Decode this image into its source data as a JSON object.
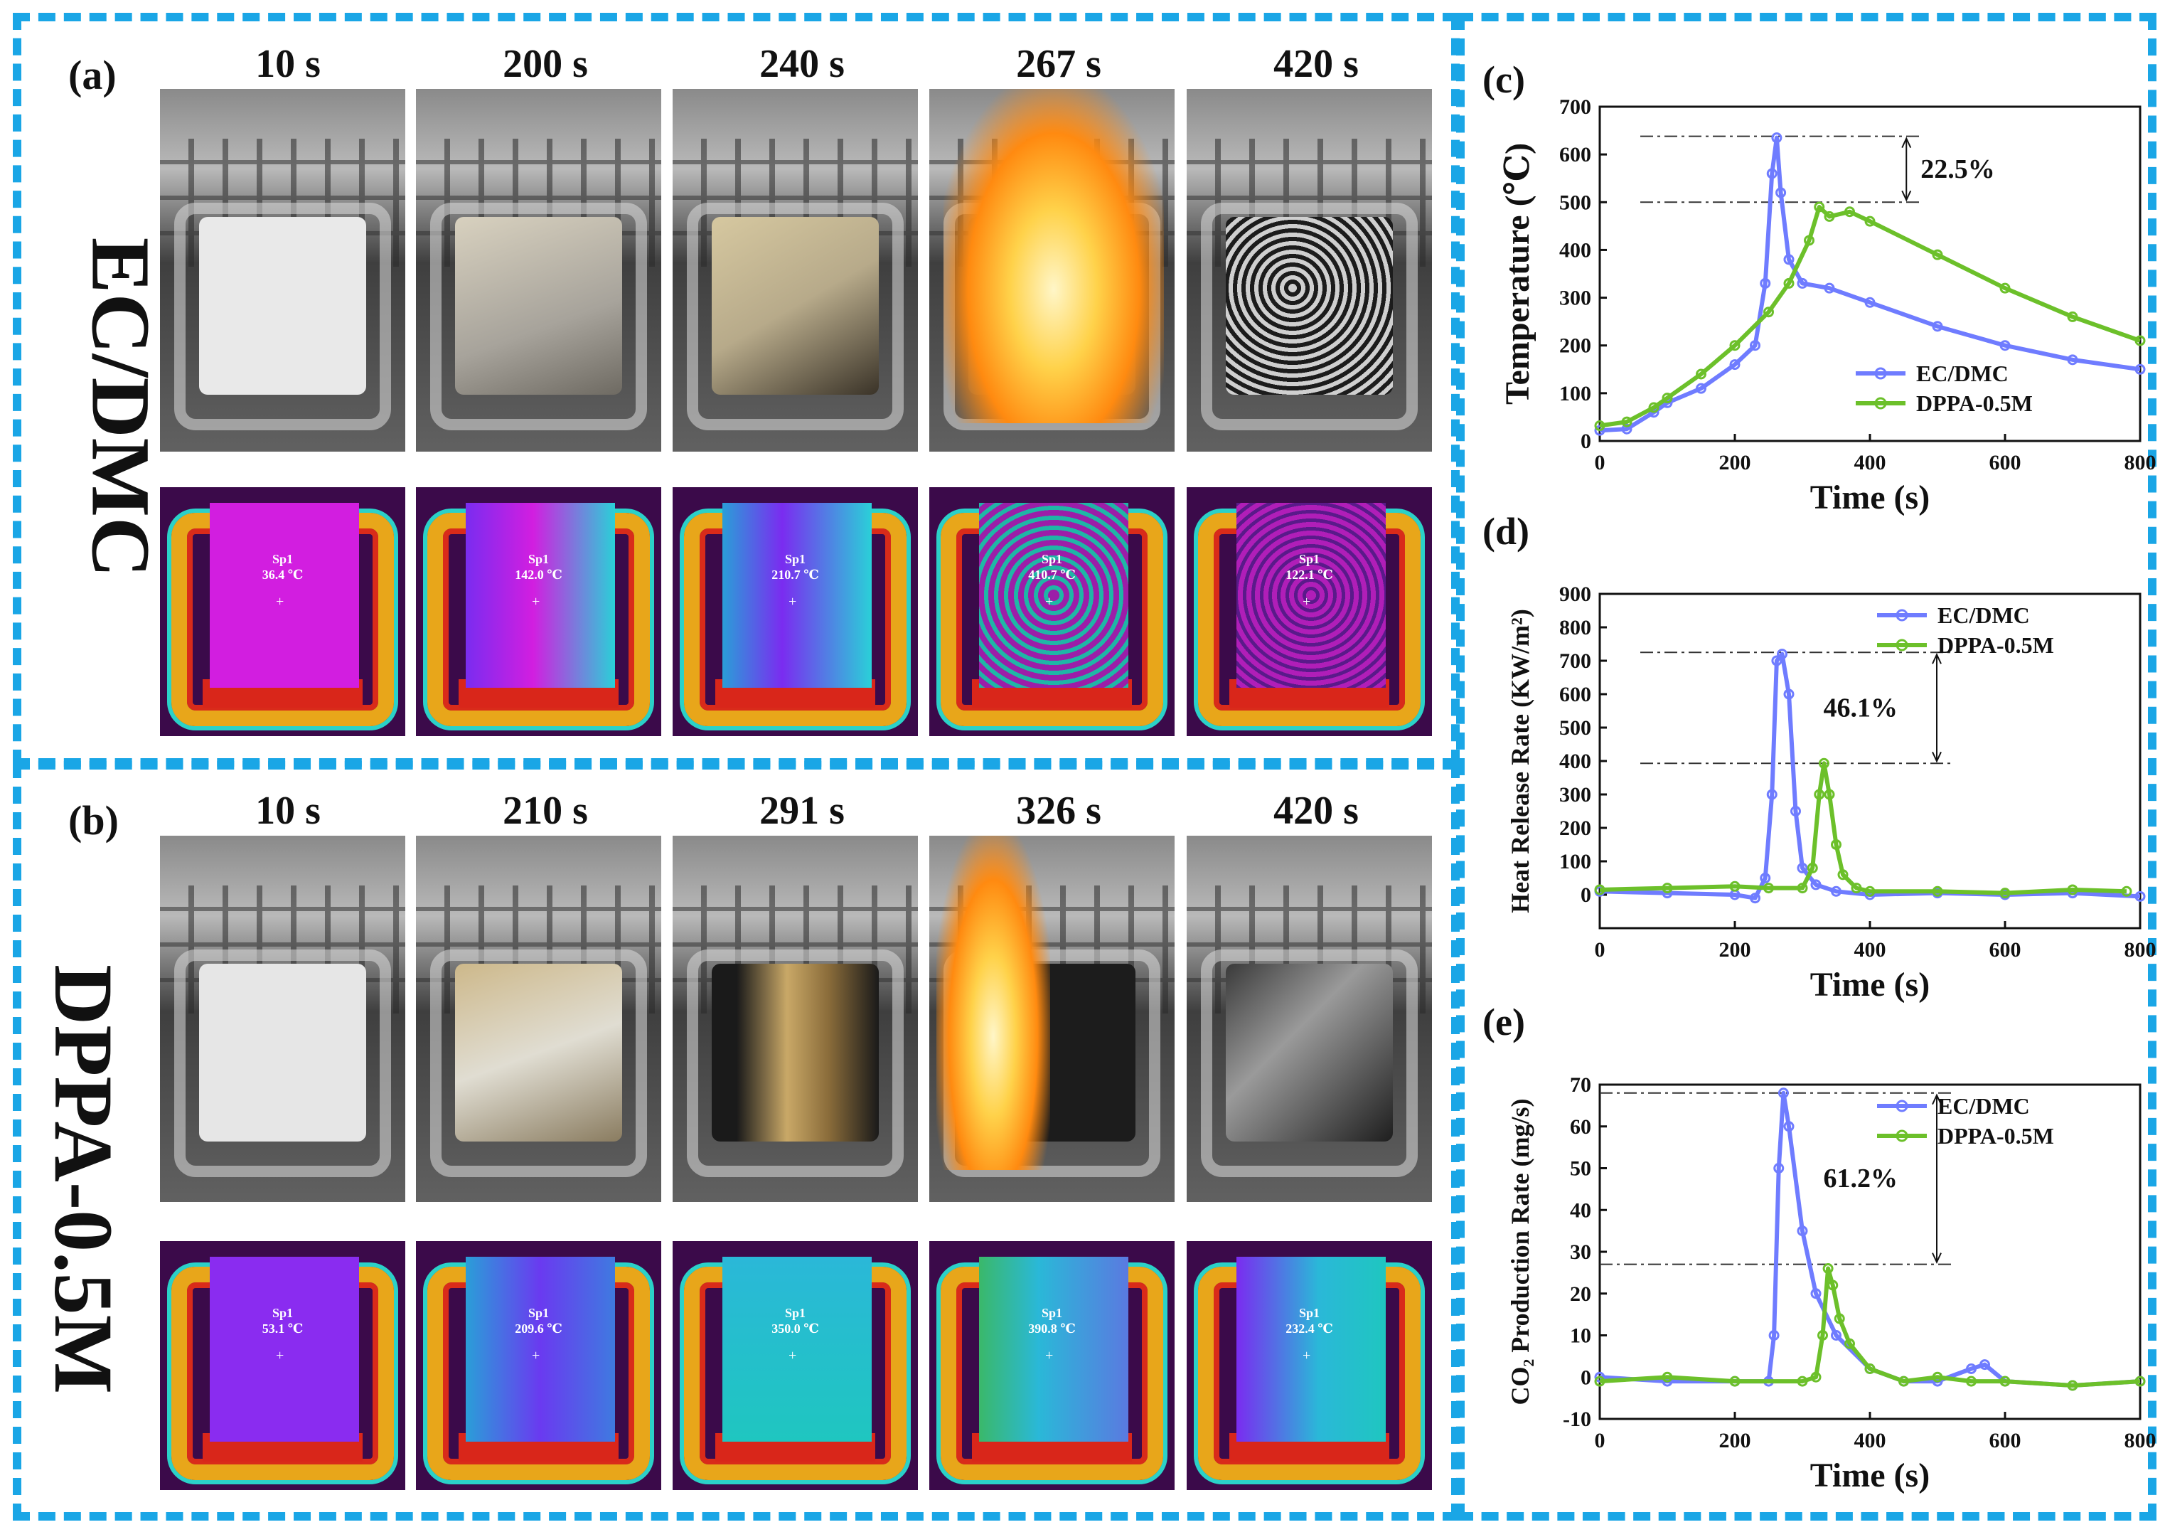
{
  "colors": {
    "frame": "#1aa6e6",
    "ec_dmc": "#6f7cff",
    "dppa": "#6cc02a"
  },
  "panels": {
    "a": {
      "label": "(a)",
      "row_title": "EC/DMC",
      "times": [
        "10 s",
        "200 s",
        "240 s",
        "267 s",
        "420 s"
      ],
      "thermal": [
        {
          "name": "Sp1",
          "temp": "36.4 ℃"
        },
        {
          "name": "Sp1",
          "temp": "142.0 ℃"
        },
        {
          "name": "Sp1",
          "temp": "210.7 ℃"
        },
        {
          "name": "Sp1",
          "temp": "410.7 ℃"
        },
        {
          "name": "Sp1",
          "temp": "122.1 ℃"
        }
      ]
    },
    "b": {
      "label": "(b)",
      "row_title": "DPPA-0.5M",
      "times": [
        "10 s",
        "210 s",
        "291 s",
        "326 s",
        "420 s"
      ],
      "thermal": [
        {
          "name": "Sp1",
          "temp": "53.1 ℃"
        },
        {
          "name": "Sp1",
          "temp": "209.6 ℃"
        },
        {
          "name": "Sp1",
          "temp": "350.0 ℃"
        },
        {
          "name": "Sp1",
          "temp": "390.8 ℃"
        },
        {
          "name": "Sp1",
          "temp": "232.4 ℃"
        }
      ]
    }
  },
  "chart_data": [
    {
      "id": "c",
      "label": "(c)",
      "type": "line",
      "xlabel": "Time (s)",
      "ylabel": "Temperature (℃)",
      "xlim": [
        0,
        800
      ],
      "ylim": [
        0,
        700
      ],
      "xticks": [
        0,
        200,
        400,
        600,
        800
      ],
      "yticks": [
        0,
        100,
        200,
        300,
        400,
        500,
        600,
        700
      ],
      "annotation": "22.5%",
      "ref_lines": [
        638,
        500
      ],
      "legend": [
        "EC/DMC",
        "DPPA-0.5M"
      ],
      "series": [
        {
          "name": "EC/DMC",
          "x": [
            0,
            40,
            80,
            100,
            150,
            200,
            230,
            245,
            255,
            262,
            268,
            280,
            300,
            340,
            400,
            500,
            600,
            700,
            800
          ],
          "y": [
            22,
            25,
            60,
            80,
            110,
            160,
            200,
            330,
            560,
            635,
            520,
            380,
            330,
            320,
            290,
            240,
            200,
            170,
            150
          ]
        },
        {
          "name": "DPPA-0.5M",
          "x": [
            0,
            40,
            80,
            100,
            150,
            200,
            250,
            280,
            310,
            325,
            340,
            370,
            400,
            500,
            600,
            700,
            800
          ],
          "y": [
            32,
            40,
            70,
            90,
            140,
            200,
            270,
            330,
            420,
            490,
            470,
            480,
            460,
            390,
            320,
            260,
            210
          ]
        }
      ]
    },
    {
      "id": "d",
      "label": "(d)",
      "type": "line",
      "xlabel": "Time (s)",
      "ylabel": "Heat Release Rate (KW/m²)",
      "xlim": [
        0,
        800
      ],
      "ylim": [
        -100,
        900
      ],
      "xticks": [
        0,
        200,
        400,
        600,
        800
      ],
      "yticks": [
        0,
        100,
        200,
        300,
        400,
        500,
        600,
        700,
        800,
        900
      ],
      "annotation": "46.1%",
      "ref_lines": [
        725,
        393
      ],
      "legend": [
        "EC/DMC",
        "DPPA-0.5M"
      ],
      "series": [
        {
          "name": "EC/DMC",
          "x": [
            0,
            100,
            200,
            230,
            245,
            255,
            262,
            270,
            280,
            290,
            300,
            320,
            350,
            400,
            500,
            600,
            700,
            800
          ],
          "y": [
            10,
            5,
            0,
            -10,
            50,
            300,
            700,
            720,
            600,
            250,
            80,
            30,
            10,
            0,
            5,
            0,
            5,
            -5
          ]
        },
        {
          "name": "DPPA-0.5M",
          "x": [
            0,
            100,
            200,
            250,
            300,
            315,
            325,
            332,
            340,
            350,
            360,
            380,
            400,
            500,
            600,
            700,
            780
          ],
          "y": [
            15,
            20,
            25,
            20,
            20,
            80,
            300,
            393,
            300,
            150,
            60,
            20,
            10,
            10,
            5,
            15,
            10
          ]
        }
      ]
    },
    {
      "id": "e",
      "label": "(e)",
      "type": "line",
      "xlabel": "Time (s)",
      "ylabel": "CO₂ Production Rate (mg/s)",
      "xlim": [
        0,
        800
      ],
      "ylim": [
        -10,
        70
      ],
      "xticks": [
        0,
        200,
        400,
        600,
        800
      ],
      "yticks": [
        -10,
        0,
        10,
        20,
        30,
        40,
        50,
        60,
        70
      ],
      "annotation": "61.2%",
      "ref_lines": [
        68,
        27
      ],
      "legend": [
        "EC/DMC",
        "DPPA-0.5M"
      ],
      "series": [
        {
          "name": "EC/DMC",
          "x": [
            0,
            100,
            200,
            250,
            258,
            265,
            272,
            280,
            300,
            320,
            350,
            400,
            450,
            500,
            550,
            570,
            600,
            700,
            800
          ],
          "y": [
            0,
            -1,
            -1,
            -1,
            10,
            50,
            68,
            60,
            35,
            20,
            10,
            2,
            -1,
            -1,
            2,
            3,
            -1,
            -2,
            -1
          ]
        },
        {
          "name": "DPPA-0.5M",
          "x": [
            0,
            100,
            200,
            300,
            320,
            330,
            338,
            345,
            355,
            370,
            400,
            450,
            500,
            550,
            600,
            700,
            800
          ],
          "y": [
            -1,
            0,
            -1,
            -1,
            0,
            10,
            26,
            22,
            14,
            8,
            2,
            -1,
            0,
            -1,
            -1,
            -2,
            -1
          ]
        }
      ]
    }
  ]
}
